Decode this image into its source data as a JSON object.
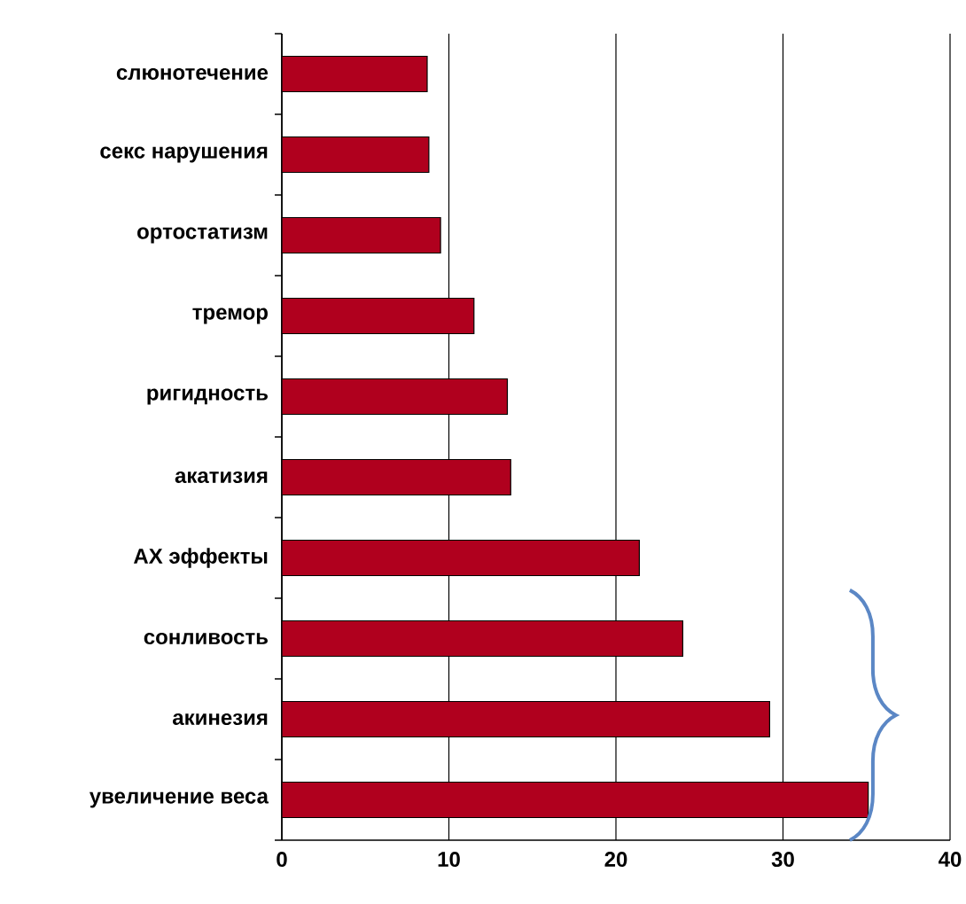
{
  "chart_data": {
    "type": "bar",
    "orientation": "horizontal",
    "categories": [
      "слюнотечение",
      "секс нарушения",
      "ортостатизм",
      "тремор",
      "ригидность",
      "акатизия",
      "АХ эффекты",
      "сонливость",
      "акинезия",
      "увеличение веса"
    ],
    "values": [
      8.7,
      8.8,
      9.5,
      11.5,
      13.5,
      13.7,
      21.4,
      24.0,
      29.2,
      35.1
    ],
    "color": "#b0001e",
    "xlim": [
      0,
      40
    ],
    "xticks": [
      0,
      10,
      20,
      30,
      40
    ],
    "grid": "x"
  }
}
